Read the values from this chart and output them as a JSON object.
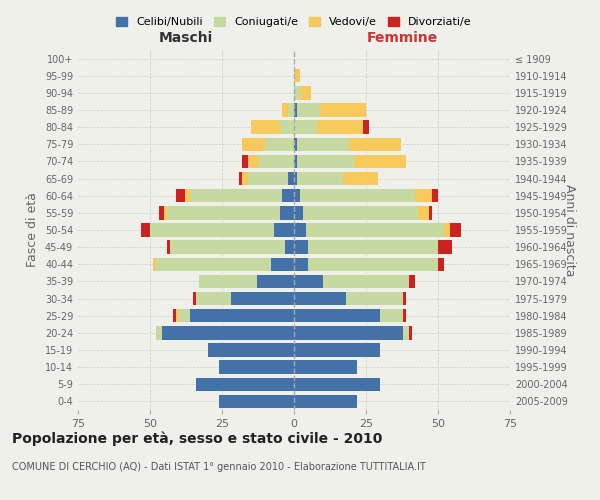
{
  "age_groups": [
    "0-4",
    "5-9",
    "10-14",
    "15-19",
    "20-24",
    "25-29",
    "30-34",
    "35-39",
    "40-44",
    "45-49",
    "50-54",
    "55-59",
    "60-64",
    "65-69",
    "70-74",
    "75-79",
    "80-84",
    "85-89",
    "90-94",
    "95-99",
    "100+"
  ],
  "birth_years": [
    "2005-2009",
    "2000-2004",
    "1995-1999",
    "1990-1994",
    "1985-1989",
    "1980-1984",
    "1975-1979",
    "1970-1974",
    "1965-1969",
    "1960-1964",
    "1955-1959",
    "1950-1954",
    "1945-1949",
    "1940-1944",
    "1935-1939",
    "1930-1934",
    "1925-1929",
    "1920-1924",
    "1915-1919",
    "1910-1914",
    "≤ 1909"
  ],
  "male": {
    "celibi": [
      26,
      34,
      26,
      30,
      46,
      36,
      22,
      13,
      8,
      3,
      7,
      5,
      4,
      2,
      0,
      0,
      0,
      0,
      0,
      0,
      0
    ],
    "coniugati": [
      0,
      0,
      0,
      0,
      2,
      4,
      12,
      20,
      40,
      40,
      43,
      39,
      32,
      14,
      12,
      10,
      5,
      2,
      0,
      0,
      0
    ],
    "vedovi": [
      0,
      0,
      0,
      0,
      0,
      1,
      0,
      0,
      1,
      0,
      0,
      1,
      2,
      2,
      4,
      8,
      10,
      2,
      0,
      0,
      0
    ],
    "divorziati": [
      0,
      0,
      0,
      0,
      0,
      1,
      1,
      0,
      0,
      1,
      3,
      2,
      3,
      1,
      2,
      0,
      0,
      0,
      0,
      0,
      0
    ]
  },
  "female": {
    "nubili": [
      22,
      30,
      22,
      30,
      38,
      30,
      18,
      10,
      5,
      5,
      4,
      3,
      2,
      1,
      1,
      1,
      0,
      1,
      0,
      0,
      0
    ],
    "coniugate": [
      0,
      0,
      0,
      0,
      2,
      8,
      20,
      30,
      45,
      45,
      48,
      40,
      40,
      16,
      20,
      18,
      8,
      8,
      2,
      0,
      0
    ],
    "vedove": [
      0,
      0,
      0,
      0,
      0,
      0,
      0,
      0,
      0,
      0,
      2,
      4,
      6,
      12,
      18,
      18,
      16,
      16,
      4,
      2,
      0
    ],
    "divorziate": [
      0,
      0,
      0,
      0,
      1,
      1,
      1,
      2,
      2,
      5,
      4,
      1,
      2,
      0,
      0,
      0,
      2,
      0,
      0,
      0,
      0
    ]
  },
  "colors": {
    "celibi": "#4472a8",
    "coniugati": "#c5d9a0",
    "vedovi": "#f5c95a",
    "divorziati": "#cc2222"
  },
  "title": "Popolazione per età, sesso e stato civile - 2010",
  "subtitle": "COMUNE DI CERCHIO (AQ) - Dati ISTAT 1° gennaio 2010 - Elaborazione TUTTITALIA.IT",
  "ylabel_left": "Fasce di età",
  "ylabel_right": "Anni di nascita",
  "label_maschi": "Maschi",
  "label_femmine": "Femmine",
  "xlim": 75,
  "background_color": "#f0f0eb",
  "legend_labels": [
    "Celibi/Nubili",
    "Coniugati/e",
    "Vedovi/e",
    "Divorziati/e"
  ]
}
